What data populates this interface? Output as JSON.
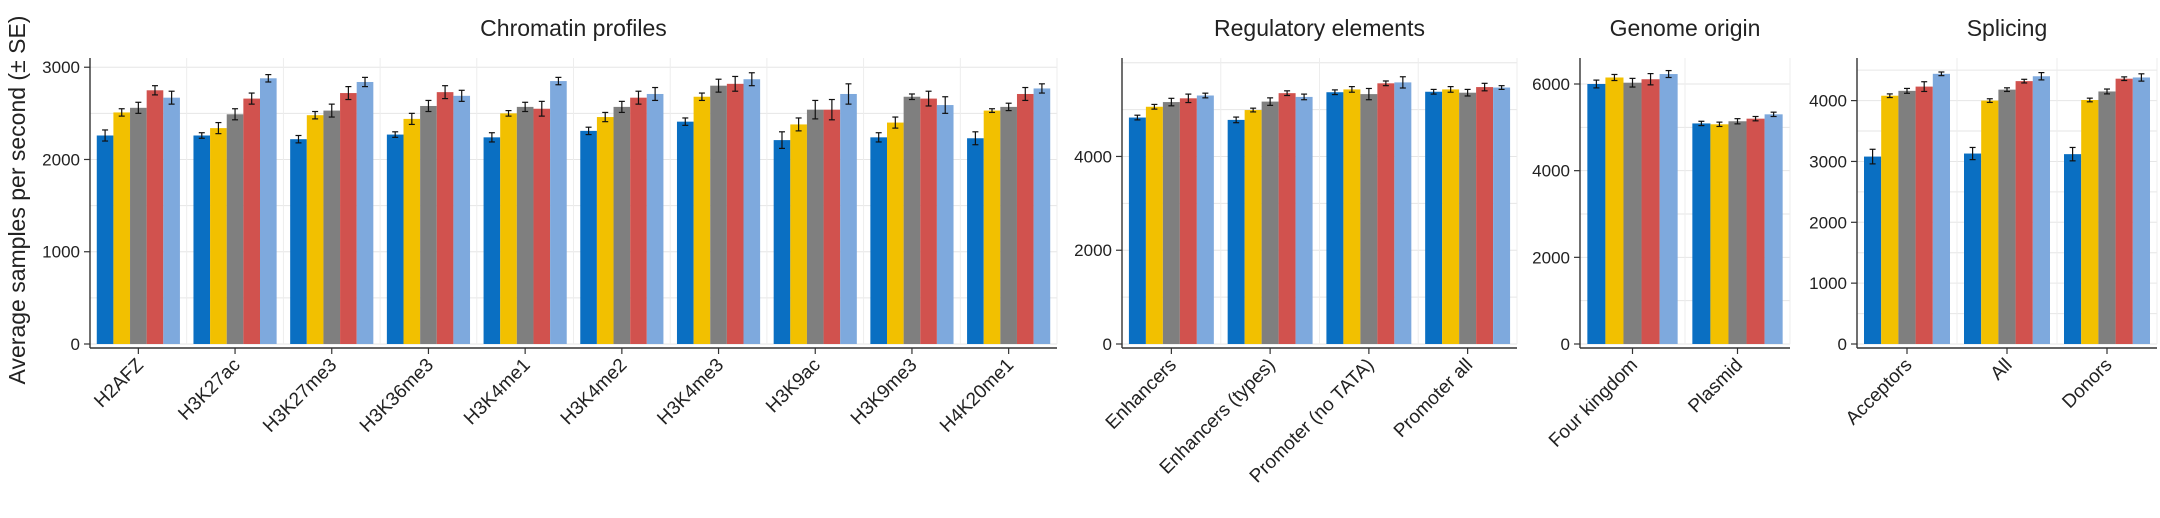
{
  "ylabel": "Average samples per second (± SE)",
  "series_colors": [
    "#0a6fc2",
    "#f2c000",
    "#7f7f7f",
    "#d1524e",
    "#7ea9dd"
  ],
  "chart_data": [
    {
      "type": "bar",
      "title": "Chromatin profiles",
      "ylim": [
        0,
        3100
      ],
      "yticks": [
        0,
        1000,
        2000,
        3000
      ],
      "categories": [
        "H2AFZ",
        "H3K27ac",
        "H3K27me3",
        "H3K36me3",
        "H3K4me1",
        "H3K4me2",
        "H3K4me3",
        "H3K9ac",
        "H3K9me3",
        "H4K20me1"
      ],
      "series": [
        {
          "values": [
            2260,
            2260,
            2220,
            2270,
            2240,
            2310,
            2410,
            2210,
            2240,
            2230
          ],
          "se": [
            60,
            30,
            40,
            30,
            50,
            40,
            40,
            90,
            50,
            70
          ]
        },
        {
          "values": [
            2510,
            2340,
            2480,
            2440,
            2500,
            2460,
            2680,
            2380,
            2400,
            2530
          ],
          "se": [
            40,
            60,
            40,
            60,
            30,
            50,
            40,
            70,
            60,
            20
          ]
        },
        {
          "values": [
            2560,
            2490,
            2530,
            2580,
            2570,
            2570,
            2800,
            2540,
            2680,
            2570
          ],
          "se": [
            60,
            60,
            70,
            60,
            50,
            60,
            70,
            100,
            30,
            40
          ]
        },
        {
          "values": [
            2750,
            2660,
            2720,
            2730,
            2550,
            2670,
            2820,
            2540,
            2660,
            2710
          ],
          "se": [
            50,
            60,
            70,
            70,
            80,
            70,
            80,
            110,
            80,
            70
          ]
        },
        {
          "values": [
            2670,
            2880,
            2840,
            2690,
            2850,
            2710,
            2870,
            2710,
            2590,
            2770
          ],
          "se": [
            70,
            40,
            50,
            60,
            40,
            70,
            70,
            110,
            90,
            50
          ]
        }
      ]
    },
    {
      "type": "bar",
      "title": "Regulatory elements",
      "ylim": [
        0,
        6100
      ],
      "yticks": [
        0,
        2000,
        4000
      ],
      "categories": [
        "Enhancers",
        "Enhancers (types)",
        "Promoter (no TATA)",
        "Promoter all"
      ],
      "series": [
        {
          "values": [
            4830,
            4780,
            5370,
            5380
          ],
          "se": [
            50,
            60,
            50,
            50
          ]
        },
        {
          "values": [
            5060,
            4990,
            5430,
            5430
          ],
          "se": [
            50,
            40,
            60,
            60
          ]
        },
        {
          "values": [
            5160,
            5170,
            5330,
            5360
          ],
          "se": [
            80,
            80,
            120,
            70
          ]
        },
        {
          "values": [
            5240,
            5350,
            5560,
            5480
          ],
          "se": [
            90,
            50,
            50,
            80
          ]
        },
        {
          "values": [
            5300,
            5270,
            5580,
            5470
          ],
          "se": [
            50,
            60,
            120,
            40
          ]
        }
      ]
    },
    {
      "type": "bar",
      "title": "Genome origin",
      "ylim": [
        0,
        6600
      ],
      "yticks": [
        0,
        2000,
        4000,
        6000
      ],
      "categories": [
        "Four kingdom",
        "Plasmid"
      ],
      "series": [
        {
          "values": [
            6000,
            5090
          ],
          "se": [
            90,
            50
          ]
        },
        {
          "values": [
            6150,
            5070
          ],
          "se": [
            70,
            50
          ]
        },
        {
          "values": [
            6030,
            5140
          ],
          "se": [
            100,
            60
          ]
        },
        {
          "values": [
            6110,
            5200
          ],
          "se": [
            130,
            50
          ]
        },
        {
          "values": [
            6230,
            5300
          ],
          "se": [
            80,
            50
          ]
        }
      ]
    },
    {
      "type": "bar",
      "title": "Splicing",
      "ylim": [
        0,
        4700
      ],
      "yticks": [
        0,
        1000,
        2000,
        3000,
        4000
      ],
      "categories": [
        "Acceptors",
        "All",
        "Donors"
      ],
      "series": [
        {
          "values": [
            3080,
            3130,
            3120
          ],
          "se": [
            120,
            100,
            110
          ]
        },
        {
          "values": [
            4080,
            4000,
            4010
          ],
          "se": [
            30,
            30,
            30
          ]
        },
        {
          "values": [
            4160,
            4180,
            4150
          ],
          "se": [
            40,
            30,
            40
          ]
        },
        {
          "values": [
            4230,
            4320,
            4360
          ],
          "se": [
            80,
            30,
            30
          ]
        },
        {
          "values": [
            4440,
            4400,
            4380
          ],
          "se": [
            30,
            60,
            60
          ]
        }
      ]
    }
  ]
}
